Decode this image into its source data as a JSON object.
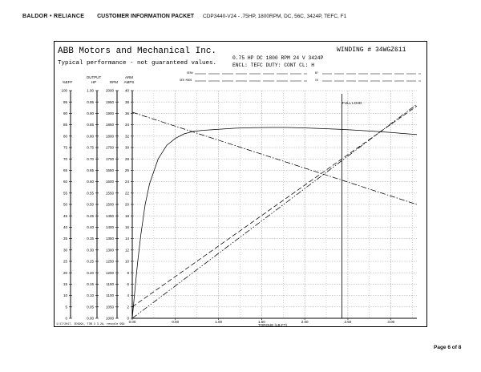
{
  "header": {
    "brand": "BALDOR • RELIANCE",
    "packet": "CUSTOMER INFORMATION PACKET",
    "doc": "CDP3440-V24 - .75HP, 1800RPM, DC, 56C, 3424P, TEFC, F1"
  },
  "sheet": {
    "company": "ABB Motors and Mechanical Inc.",
    "winding": "WINDING # 34WGZ611",
    "typical": "Typical performance - not guaranteed values.",
    "spec1": "0.75 HP  DC  1800 RPM  24 V  3424P",
    "spec2": "ENCL: TEFC  DUTY: CONT  CL: H",
    "small_row1_left": "SER#",
    "small_row2_left": "SER MODS",
    "small_row1_right": "BY",
    "small_row2_right": "CK",
    "footnote": "1/17/2017, 3D9991, TOB 2.3.2A, rescale 999"
  },
  "page": {
    "label": "Page 6 of 8"
  },
  "chart_data": {
    "type": "line",
    "xlabel": "TORQUE (LB-FT)",
    "x_ticks": [
      "0.00",
      "0.50",
      "1.00",
      "1.50",
      "2.00",
      "2.50",
      "3.00"
    ],
    "xlim": [
      0,
      3.3
    ],
    "y_axes": [
      {
        "header": [
          "",
          "%EFF"
        ],
        "ticks": [
          0,
          5,
          10,
          15,
          20,
          25,
          30,
          35,
          40,
          45,
          50,
          55,
          60,
          65,
          70,
          75,
          80,
          85,
          90,
          95,
          100
        ],
        "range": [
          0,
          100
        ]
      },
      {
        "header": [
          "OUTPUT",
          "HP"
        ],
        "ticks": [
          "0.00",
          "0.05",
          "0.10",
          "0.15",
          "0.20",
          "0.25",
          "0.30",
          "0.35",
          "0.40",
          "0.45",
          "0.50",
          "0.55",
          "0.60",
          "0.65",
          "0.70",
          "0.75",
          "0.80",
          "0.85",
          "0.90",
          "0.95",
          "1.00"
        ],
        "range": [
          0,
          1
        ]
      },
      {
        "header": [
          "",
          "RPM"
        ],
        "ticks": [
          1000,
          1050,
          1100,
          1150,
          1200,
          1250,
          1300,
          1350,
          1400,
          1450,
          1500,
          1550,
          1600,
          1650,
          1700,
          1750,
          1800,
          1850,
          1900,
          1950,
          2000
        ],
        "range": [
          1000,
          2000
        ]
      },
      {
        "header": [
          "ARM",
          "AMPS"
        ],
        "ticks": [
          0,
          2,
          4,
          6,
          8,
          10,
          12,
          14,
          16,
          18,
          20,
          22,
          24,
          26,
          28,
          30,
          32,
          34,
          36,
          38,
          40
        ],
        "range": [
          0,
          40
        ]
      }
    ],
    "annotation": "FULL LOAD",
    "full_load_torque": 2.43,
    "series": [
      {
        "style": "solid",
        "axis": "%EFF",
        "x": [
          0.0,
          0.03,
          0.06,
          0.1,
          0.15,
          0.2,
          0.3,
          0.4,
          0.5,
          0.6,
          0.7,
          0.8,
          1.0,
          1.2,
          1.4,
          1.6,
          1.8,
          2.0,
          2.2,
          2.4,
          2.6,
          2.8,
          3.0,
          3.2,
          3.3
        ],
        "y": [
          0,
          12,
          24,
          37,
          50,
          59,
          70,
          76,
          79,
          81,
          82,
          82.5,
          83,
          83.5,
          83.7,
          83.8,
          83.8,
          83.6,
          83.3,
          83,
          82.6,
          82.1,
          81.6,
          81,
          80.7
        ]
      },
      {
        "style": "dashdot",
        "axis": "RPM",
        "x": [
          0.0,
          3.3
        ],
        "y": [
          1905,
          1500
        ]
      },
      {
        "style": "dashed",
        "axis": "AMPS",
        "x": [
          0.0,
          3.3
        ],
        "y": [
          2.0,
          37.3
        ]
      },
      {
        "style": "dashdotdot",
        "axis": "HP",
        "x": [
          0.0,
          3.3
        ],
        "y": [
          0.0,
          0.94
        ]
      }
    ]
  }
}
